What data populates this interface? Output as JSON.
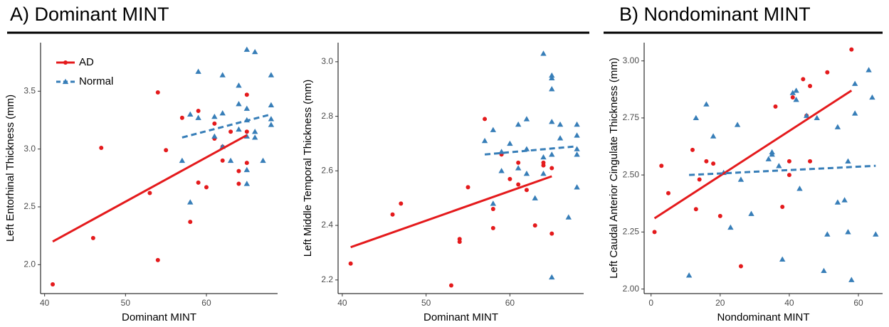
{
  "sections": [
    {
      "title": "A) Dominant MINT"
    },
    {
      "title": "B) Nondominant MINT"
    }
  ],
  "chart_data": [
    {
      "type": "scatter",
      "xlabel": "Dominant MINT",
      "ylabel": "Left Entorhinal Thickness (mm)",
      "xlim": [
        39.5,
        68.8
      ],
      "ylim": [
        1.75,
        3.92
      ],
      "xticks": [
        40,
        50,
        60
      ],
      "yticks": [
        {
          "value": 2,
          "label": "2.0"
        },
        2.5,
        {
          "value": 3,
          "label": "3.0"
        },
        3.5
      ],
      "grid": false,
      "legend": "top-left",
      "series": [
        {
          "name": "AD",
          "color": "#e41a1c",
          "marker": "circle",
          "line_style": "solid",
          "x": [
            41,
            46,
            47,
            53,
            54,
            54,
            55,
            57,
            58,
            59,
            59,
            60,
            61,
            61,
            62,
            62,
            63,
            64,
            64,
            65,
            65,
            65
          ],
          "values": [
            1.83,
            2.23,
            3.01,
            2.62,
            3.49,
            2.04,
            2.99,
            3.27,
            2.37,
            3.33,
            2.71,
            2.67,
            3.22,
            3.09,
            2.9,
            3.02,
            3.15,
            2.81,
            2.7,
            3.15,
            3.47,
            2.88
          ],
          "fit": {
            "x": [
              41,
              65
            ],
            "values": [
              2.2,
              3.12
            ]
          }
        },
        {
          "name": "Normal",
          "color": "#377eb8",
          "marker": "triangle",
          "line_style": "dashed",
          "x": [
            57,
            58,
            58,
            59,
            59,
            61,
            61,
            62,
            62,
            62,
            63,
            64,
            64,
            64,
            65,
            65,
            65,
            65,
            65,
            65,
            66,
            66,
            66,
            67,
            68,
            68,
            68,
            68
          ],
          "values": [
            2.9,
            3.3,
            2.54,
            3.67,
            3.27,
            3.28,
            3.11,
            3.64,
            3.31,
            3.02,
            2.9,
            3.55,
            3.39,
            3.17,
            3.86,
            3.35,
            3.25,
            2.82,
            2.7,
            3.11,
            3.84,
            3.15,
            3.1,
            2.9,
            3.64,
            3.38,
            3.26,
            3.21
          ],
          "fit": {
            "x": [
              57,
              68
            ],
            "values": [
              3.1,
              3.3
            ]
          }
        }
      ]
    },
    {
      "type": "scatter",
      "xlabel": "Dominant MINT",
      "ylabel": "Left Middle Temporal Thickness (mm)",
      "xlim": [
        39.5,
        68.8
      ],
      "ylim": [
        2.15,
        3.07
      ],
      "xticks": [
        40,
        50,
        60
      ],
      "yticks": [
        2.2,
        2.4,
        2.6,
        2.8,
        {
          "value": 3,
          "label": "3.0"
        }
      ],
      "grid": false,
      "series": [
        {
          "color": "#e41a1c",
          "marker": "circle",
          "line_style": "solid",
          "x": [
            41,
            46,
            47,
            53,
            54,
            54,
            55,
            57,
            58,
            58,
            59,
            60,
            61,
            61,
            62,
            63,
            64,
            64,
            65,
            65
          ],
          "values": [
            2.26,
            2.44,
            2.48,
            2.18,
            2.35,
            2.34,
            2.54,
            2.79,
            2.46,
            2.39,
            2.66,
            2.57,
            2.63,
            2.55,
            2.53,
            2.4,
            2.63,
            2.62,
            2.61,
            2.37
          ],
          "fit": {
            "x": [
              41,
              65
            ],
            "values": [
              2.32,
              2.58
            ]
          }
        },
        {
          "color": "#377eb8",
          "marker": "triangle",
          "line_style": "dashed",
          "x": [
            57,
            58,
            58,
            59,
            59,
            60,
            61,
            61,
            62,
            62,
            62,
            63,
            64,
            64,
            64,
            65,
            65,
            65,
            65,
            65,
            65,
            66,
            66,
            67,
            68,
            68,
            68,
            68,
            68
          ],
          "values": [
            2.71,
            2.75,
            2.48,
            2.67,
            2.6,
            2.7,
            2.77,
            2.61,
            2.79,
            2.68,
            2.59,
            2.5,
            3.03,
            2.65,
            2.59,
            2.95,
            2.94,
            2.9,
            2.78,
            2.66,
            2.21,
            2.77,
            2.72,
            2.43,
            2.77,
            2.73,
            2.68,
            2.66,
            2.54
          ],
          "fit": {
            "x": [
              57,
              68
            ],
            "values": [
              2.66,
              2.69
            ]
          }
        }
      ]
    },
    {
      "type": "scatter",
      "xlabel": "Nondominant MINT",
      "ylabel": "Left Caudal Anterior Cingulate Thickness (mm)",
      "xlim": [
        -2,
        67
      ],
      "ylim": [
        1.98,
        3.08
      ],
      "xticks": [
        0,
        20,
        40,
        60
      ],
      "yticks": [
        {
          "value": 2,
          "label": "2.00"
        },
        {
          "value": 2.25,
          "label": "2.25"
        },
        {
          "value": 2.5,
          "label": "2.50"
        },
        {
          "value": 2.75,
          "label": "2.75"
        },
        {
          "value": 3,
          "label": "3.00"
        }
      ],
      "grid": false,
      "series": [
        {
          "color": "#e41a1c",
          "marker": "circle",
          "line_style": "solid",
          "x": [
            1,
            3,
            5,
            12,
            13,
            14,
            16,
            18,
            20,
            26,
            36,
            38,
            40,
            40,
            41,
            44,
            45,
            46,
            46,
            51,
            58
          ],
          "values": [
            2.25,
            2.54,
            2.42,
            2.61,
            2.35,
            2.48,
            2.56,
            2.55,
            2.32,
            2.1,
            2.8,
            2.36,
            2.56,
            2.5,
            2.84,
            2.92,
            2.76,
            2.89,
            2.56,
            2.95,
            3.05
          ],
          "fit": {
            "x": [
              1,
              58
            ],
            "values": [
              2.31,
              2.87
            ]
          }
        },
        {
          "color": "#377eb8",
          "marker": "triangle",
          "line_style": "dashed",
          "x": [
            11,
            13,
            16,
            18,
            21,
            23,
            25,
            26,
            29,
            34,
            35,
            35,
            37,
            38,
            41,
            42,
            42,
            43,
            45,
            48,
            50,
            51,
            54,
            54,
            56,
            57,
            57,
            58,
            59,
            59,
            63,
            64,
            65
          ],
          "values": [
            2.06,
            2.75,
            2.81,
            2.67,
            2.51,
            2.27,
            2.72,
            2.48,
            2.33,
            2.57,
            2.6,
            2.59,
            2.54,
            2.13,
            2.86,
            2.87,
            2.83,
            2.44,
            2.76,
            2.75,
            2.08,
            2.24,
            2.71,
            2.38,
            2.39,
            2.56,
            2.25,
            2.04,
            2.9,
            2.77,
            2.96,
            2.84,
            2.24
          ],
          "fit": {
            "x": [
              11,
              65
            ],
            "values": [
              2.5,
              2.54
            ]
          }
        }
      ]
    }
  ]
}
